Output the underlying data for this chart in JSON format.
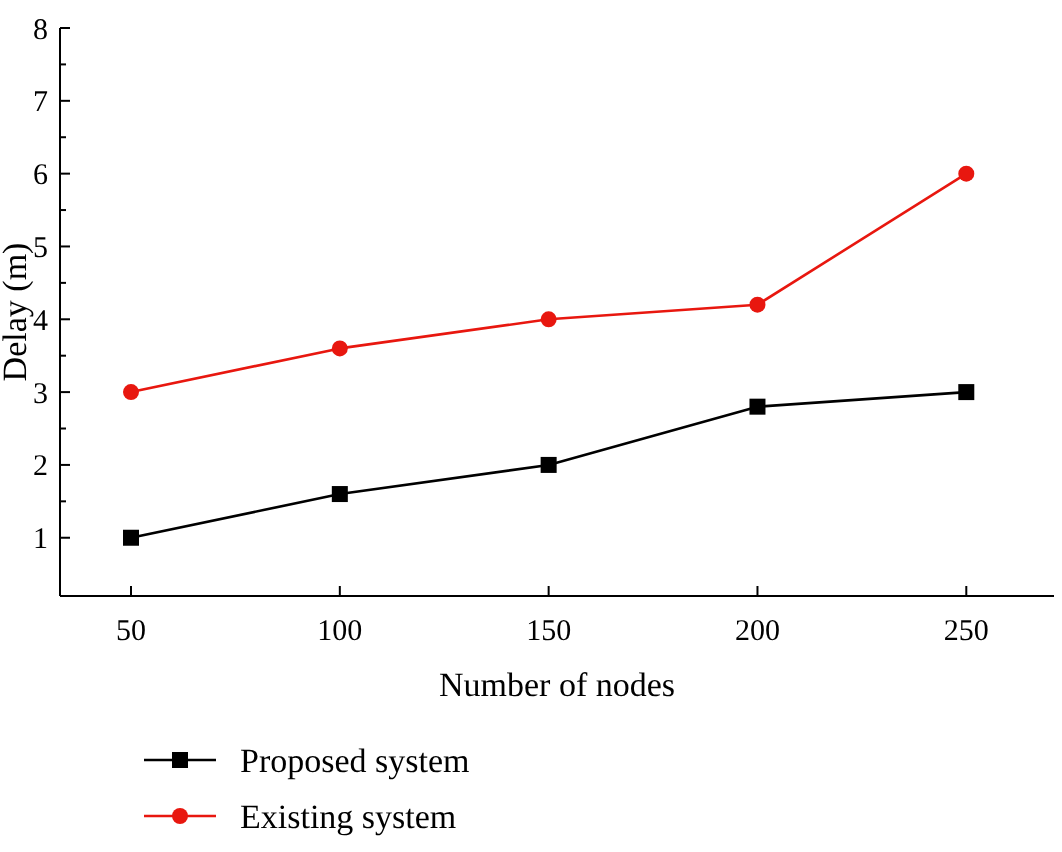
{
  "chart_data": {
    "type": "line",
    "xlabel": "Number of nodes",
    "ylabel": "Delay (m)",
    "x": [
      50,
      100,
      150,
      200,
      250
    ],
    "series": [
      {
        "name": "Proposed system",
        "color": "#000000",
        "values": [
          1,
          1.6,
          2,
          2.8,
          3
        ],
        "marker": "square"
      },
      {
        "name": "Existing system",
        "color": "#e8170f",
        "values": [
          3,
          3.6,
          4,
          4.2,
          6
        ],
        "marker": "circle"
      }
    ],
    "xlim": [
      33,
      271
    ],
    "ylim": [
      0.2,
      8
    ],
    "xticks": [
      50,
      100,
      150,
      200,
      250
    ],
    "yticks": [
      1,
      2,
      3,
      4,
      5,
      6,
      7,
      8
    ],
    "grid": false,
    "legend": "bottom",
    "line_style": "solid"
  }
}
